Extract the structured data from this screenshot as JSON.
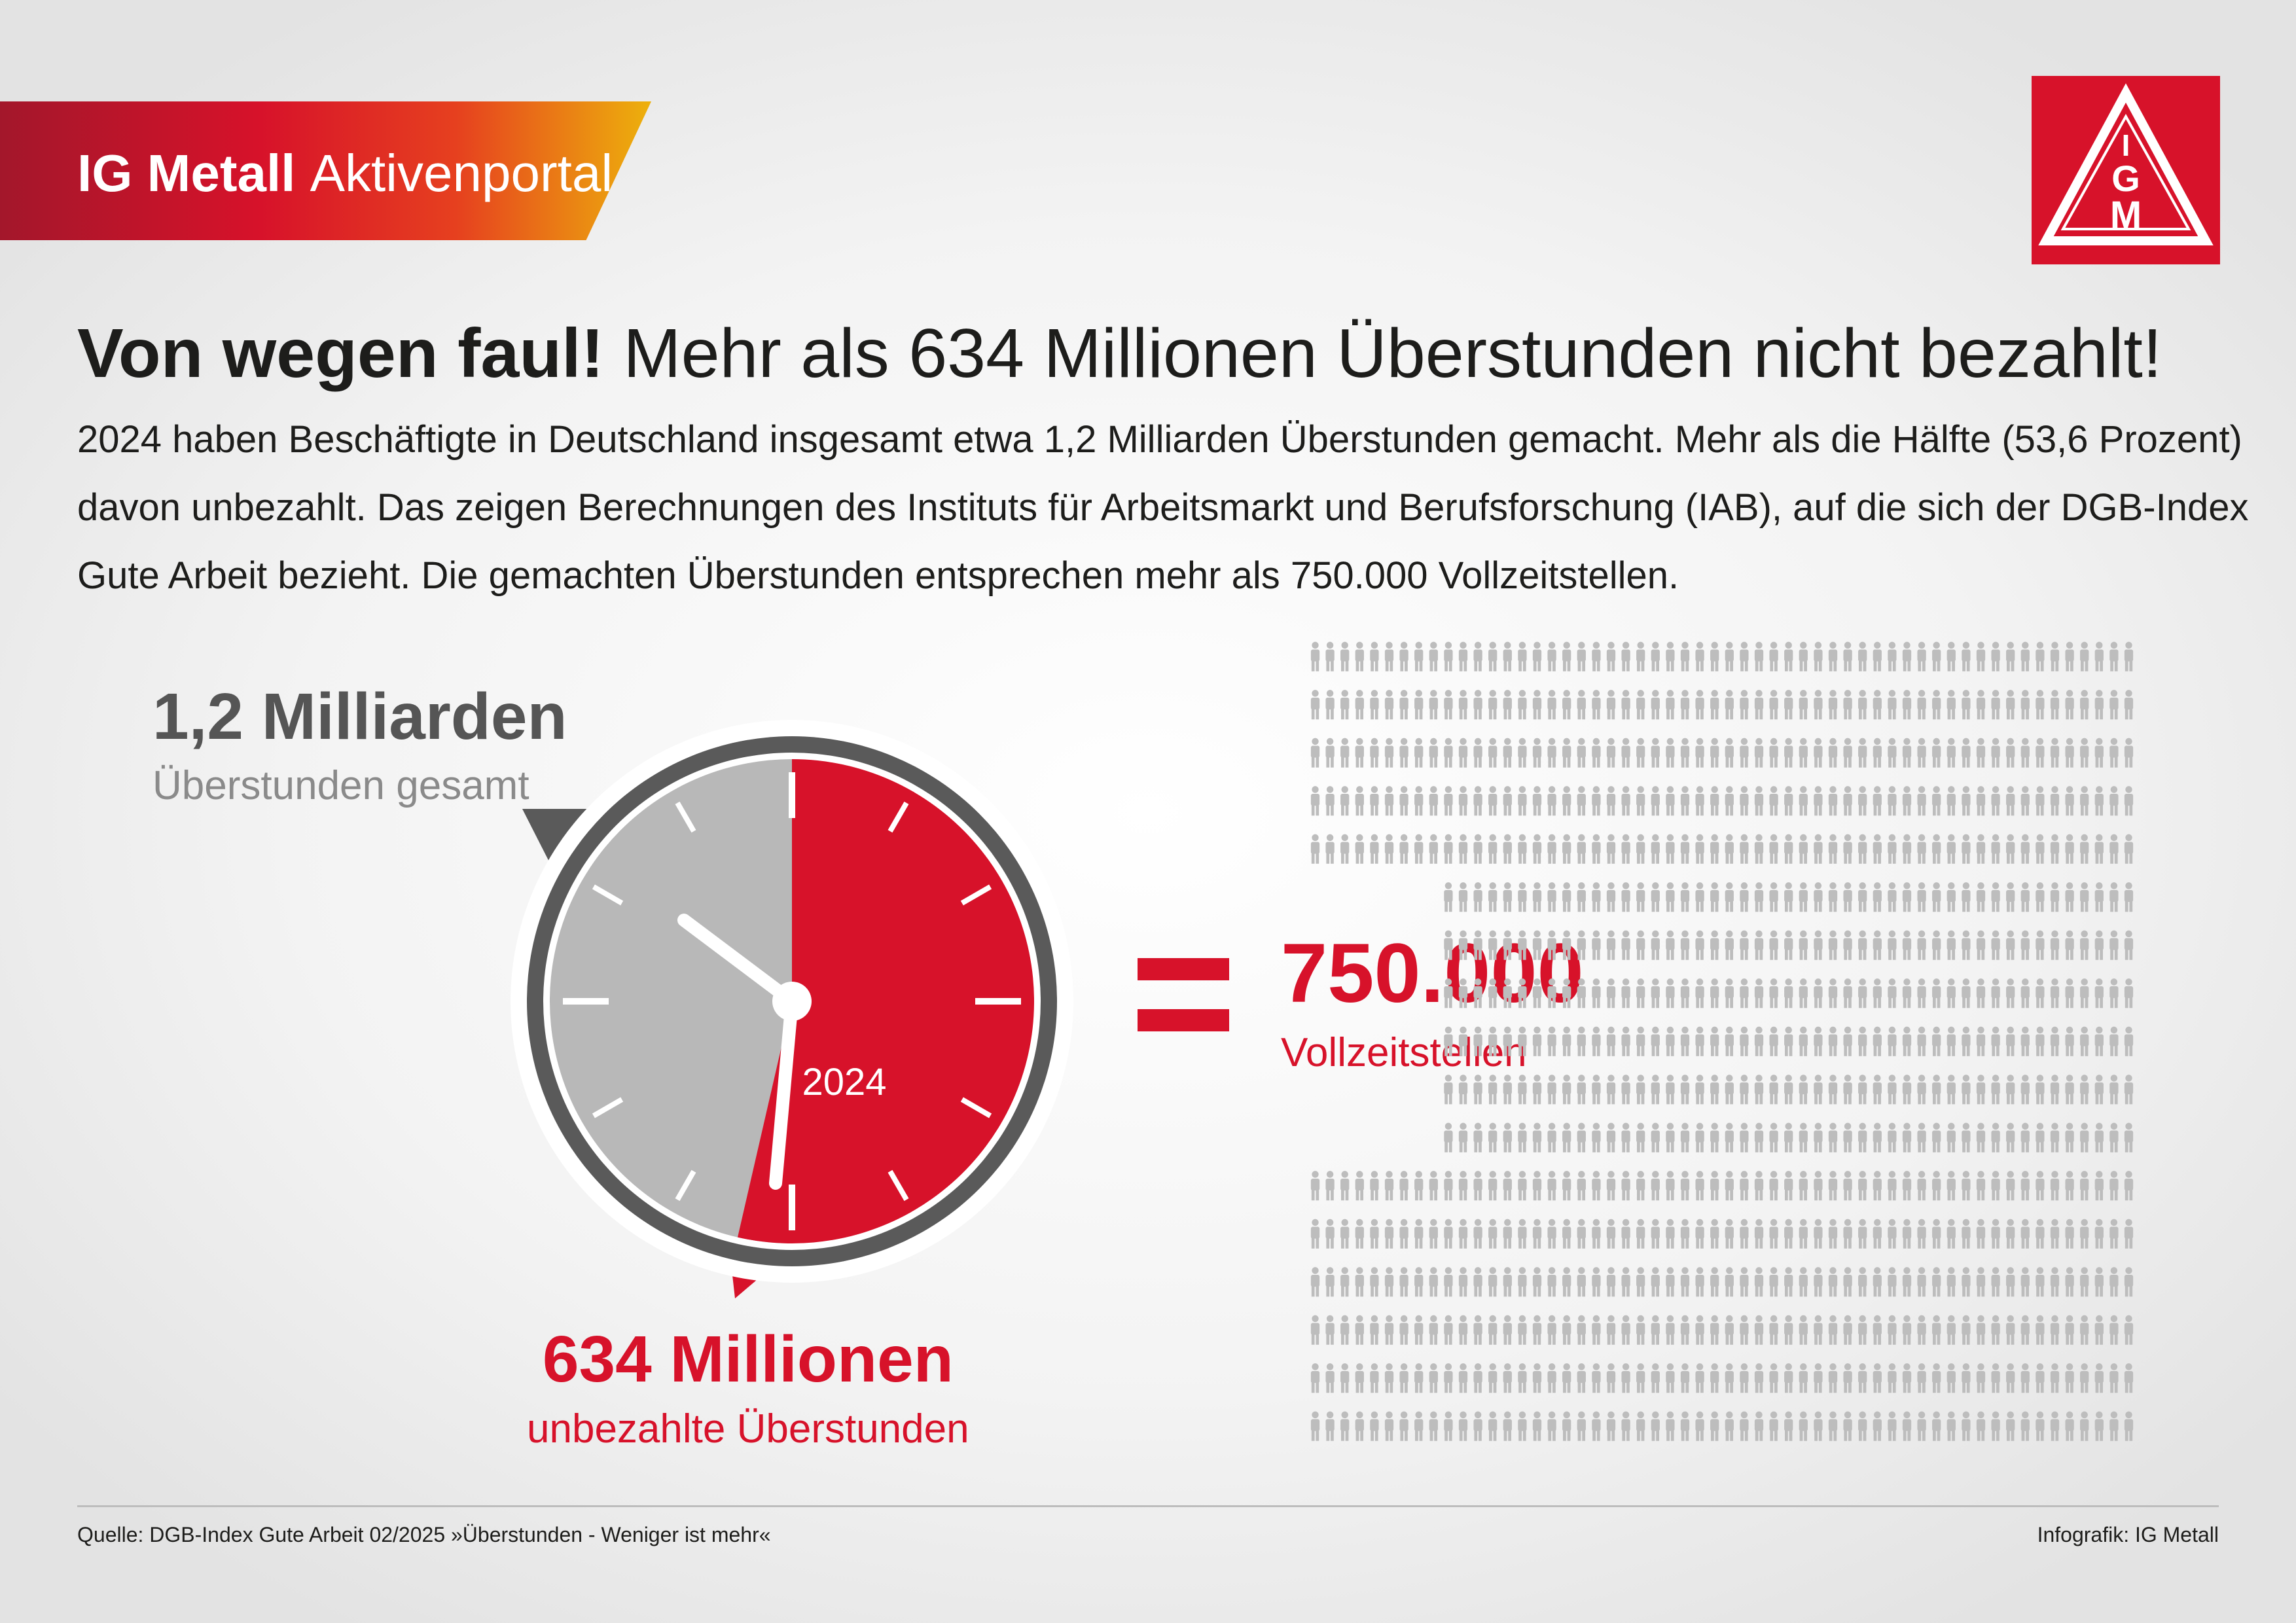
{
  "header": {
    "brand_bold": "IG Metall",
    "brand_regular": "Aktivenportal",
    "logo_letters": [
      "I",
      "G",
      "M"
    ]
  },
  "title": {
    "bold": "Von wegen faul!",
    "regular": "Mehr als 634 Millionen Überstunden nicht bezahlt!"
  },
  "intro": "2024 haben Beschäftigte in Deutschland insgesamt etwa 1,2 Milliarden Überstunden gemacht. Mehr als die Hälfte (53,6 Prozent) davon unbezahlt. Das zeigen Berechnungen des Instituts für Arbeitsmarkt und Berufsforschung (IAB), auf die sich der DGB-Index Gute Arbeit bezieht. Die gemachten Überstunden entsprechen mehr als 750.000 Vollzeitstellen.",
  "stats": {
    "total_value": "1,2 Milliarden",
    "total_label": "Überstunden gesamt",
    "unpaid_value": "634 Millionen",
    "unpaid_label": "unbezahlte Überstunden",
    "jobs_value": "750.000",
    "jobs_label": "Vollzeitstellen"
  },
  "clock": {
    "year": "2024",
    "unpaid_fraction": 0.536
  },
  "colors": {
    "red": "#d7122a",
    "grey_light": "#b8b8b8",
    "grey_dark": "#5a5a5a",
    "people": "#bdbdbd"
  },
  "footer": {
    "source": "Quelle: DGB-Index Gute Arbeit 02/2025  »Überstunden - Weniger ist mehr«",
    "credit": "Infografik: IG Metall"
  }
}
